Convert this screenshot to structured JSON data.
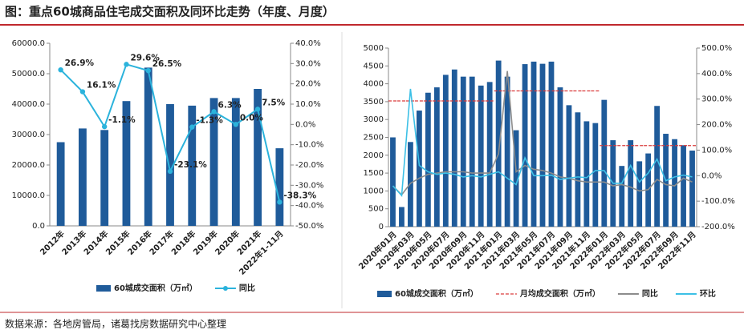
{
  "title": "图：重点60城商品住宅成交面积及同环比走势（年度、月度）",
  "source": "数据来源：各地房管局，诸葛找房数据研究中心整理",
  "chart_data": [
    {
      "type": "bar",
      "categories": [
        "2012年",
        "2013年",
        "2014年",
        "2015年",
        "2016年",
        "2017年",
        "2018年",
        "2019年",
        "2020年",
        "2021年",
        "2022年1-11月"
      ],
      "series": [
        {
          "name": "60城成交面积（万㎡）",
          "type": "bar",
          "color": "#1f5b9a",
          "values": [
            27500,
            32000,
            31500,
            41000,
            52000,
            40000,
            39500,
            42000,
            42000,
            45000,
            25500
          ]
        },
        {
          "name": "同比",
          "type": "line",
          "axis": "y2",
          "color": "#2bb3dc",
          "markers": true,
          "values": [
            26.9,
            16.1,
            -1.1,
            29.6,
            26.5,
            -23.1,
            -1.3,
            6.3,
            0.0,
            7.5,
            -38.3
          ],
          "value_labels": [
            "26.9%",
            "16.1%",
            "-1.1%",
            "29.6%",
            "26.5%",
            "-23.1%",
            "-1.3%",
            "6.3%",
            "0.0%",
            "7.5%",
            "-38.3%"
          ]
        }
      ],
      "ylim": [
        0,
        60000
      ],
      "yticks": [
        {
          "value": 0,
          "label": "0.0"
        },
        {
          "value": 10000,
          "label": "10000.0"
        },
        {
          "value": 20000,
          "label": "20000.0"
        },
        {
          "value": 30000,
          "label": "30000.0"
        },
        {
          "value": 40000,
          "label": "40000.0"
        },
        {
          "value": 50000,
          "label": "50000.0"
        },
        {
          "value": 60000,
          "label": "60000.0"
        }
      ],
      "y2lim": [
        -50,
        40
      ],
      "y2ticks": [
        {
          "value": -50,
          "label": "-50.0%"
        },
        {
          "value": -40,
          "label": "-40.0%"
        },
        {
          "value": -30,
          "label": "-30.0%"
        },
        {
          "value": -20,
          "label": "-20.0%"
        },
        {
          "value": -10,
          "label": "-10.0%"
        },
        {
          "value": 0,
          "label": "0.0%"
        },
        {
          "value": 10,
          "label": "10.0%"
        },
        {
          "value": 20,
          "label": "20.0%"
        },
        {
          "value": 30,
          "label": "30.0%"
        },
        {
          "value": 40,
          "label": "40.0%"
        }
      ],
      "legend": "bottom"
    },
    {
      "type": "bar",
      "categories": [
        "2020年01月",
        null,
        "2020年03月",
        null,
        "2020年05月",
        null,
        "2020年07月",
        null,
        "2020年09月",
        null,
        "2020年11月",
        null,
        "2021年01月",
        null,
        "2021年03月",
        null,
        "2021年05月",
        null,
        "2021年07月",
        null,
        "2021年09月",
        null,
        "2021年11月",
        null,
        "2022年01月",
        null,
        "2022年03月",
        null,
        "2022年05月",
        null,
        "2022年07月",
        null,
        "2022年09月",
        null,
        "2022年11月"
      ],
      "series": [
        {
          "name": "60城成交面积（万㎡）",
          "type": "bar",
          "color": "#1f5b9a",
          "values": [
            2500,
            550,
            2370,
            3250,
            3750,
            3900,
            4250,
            4400,
            4200,
            4200,
            3950,
            4050,
            4650,
            4200,
            2700,
            4550,
            4620,
            4560,
            4620,
            3900,
            3400,
            3200,
            2950,
            2900,
            3550,
            2420,
            1700,
            2420,
            1830,
            2050,
            3380,
            2600,
            2450,
            2280,
            2130
          ]
        },
        {
          "name": "月均成交面积（万㎡）",
          "type": "step",
          "color": "#d93a3a",
          "values": [
            3520,
            3520,
            3520,
            3520,
            3520,
            3520,
            3520,
            3520,
            3520,
            3520,
            3520,
            3520,
            3800,
            3800,
            3800,
            3800,
            3800,
            3800,
            3800,
            3800,
            3800,
            3800,
            3800,
            3800,
            2270,
            2270,
            2270,
            2270,
            2270,
            2270,
            2270,
            2270,
            2270,
            2270,
            2270
          ]
        },
        {
          "name": "同比",
          "type": "line",
          "axis": "y2",
          "color": "#8c8c8c",
          "values": [
            -40,
            -75,
            -30,
            -10,
            5,
            10,
            15,
            15,
            15,
            10,
            10,
            10,
            85,
            410,
            15,
            40,
            25,
            20,
            10,
            -5,
            -10,
            -20,
            -25,
            -25,
            -25,
            -40,
            -35,
            -45,
            -60,
            -55,
            -15,
            -35,
            -40,
            -10,
            -25
          ]
        },
        {
          "name": "环比",
          "type": "line",
          "axis": "y2",
          "color": "#3cc0e6",
          "values": [
            -40,
            -78,
            340,
            40,
            15,
            5,
            10,
            5,
            -5,
            0,
            -5,
            5,
            15,
            -10,
            -35,
            70,
            0,
            0,
            2,
            -15,
            -10,
            -5,
            -8,
            20,
            20,
            -30,
            -30,
            40,
            -25,
            10,
            65,
            -20,
            -5,
            2,
            -5
          ]
        }
      ],
      "ylim": [
        0,
        5000
      ],
      "yticks": [
        0,
        500,
        1000,
        1500,
        2000,
        2500,
        3000,
        3500,
        4000,
        4500,
        5000
      ],
      "y2lim": [
        -200,
        500
      ],
      "y2ticks": [
        {
          "value": -200,
          "label": "-200.0%"
        },
        {
          "value": -100,
          "label": "-100.0%"
        },
        {
          "value": 0,
          "label": "0.0%"
        },
        {
          "value": 100,
          "label": "100.0%"
        },
        {
          "value": 200,
          "label": "200.0%"
        },
        {
          "value": 300,
          "label": "300.0%"
        },
        {
          "value": 400,
          "label": "400.0%"
        },
        {
          "value": 500,
          "label": "500.0%"
        }
      ],
      "legend": "bottom"
    }
  ]
}
